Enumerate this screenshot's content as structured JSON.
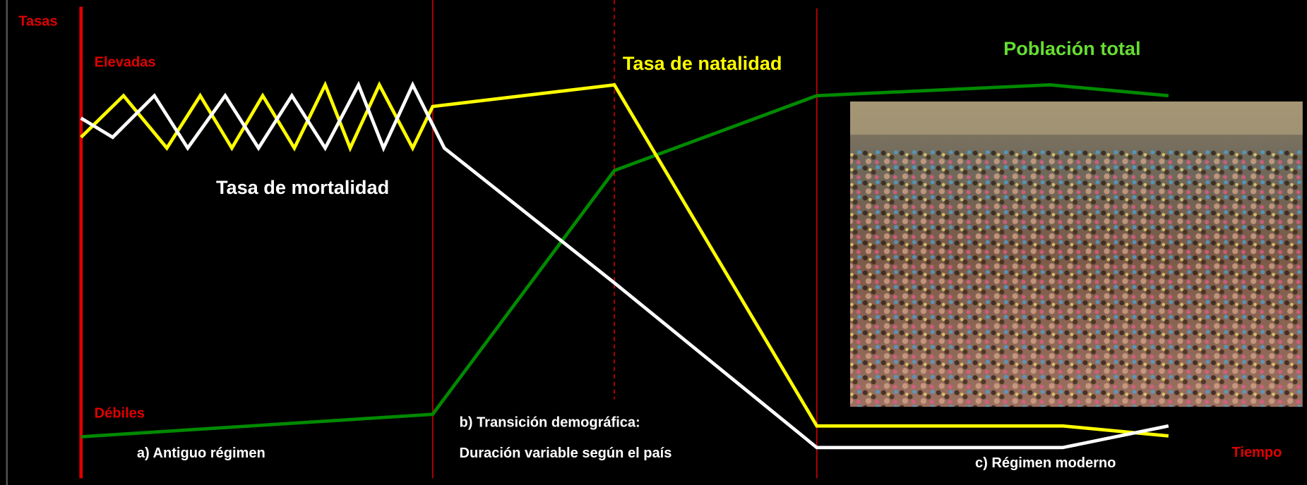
{
  "axis": {
    "y_label": "Tasas",
    "x_label": "Tiempo",
    "high": "Elevadas",
    "low": "Débiles"
  },
  "lines": {
    "birth": "Tasa de natalidad",
    "death": "Tasa de mortalidad",
    "population": "Población total"
  },
  "phases": {
    "a": "a) Antiguo régimen",
    "b_title": "b) Transición demográfica:",
    "b_note": "Duración variable según el país",
    "c": "c) Régimen moderno"
  }
}
